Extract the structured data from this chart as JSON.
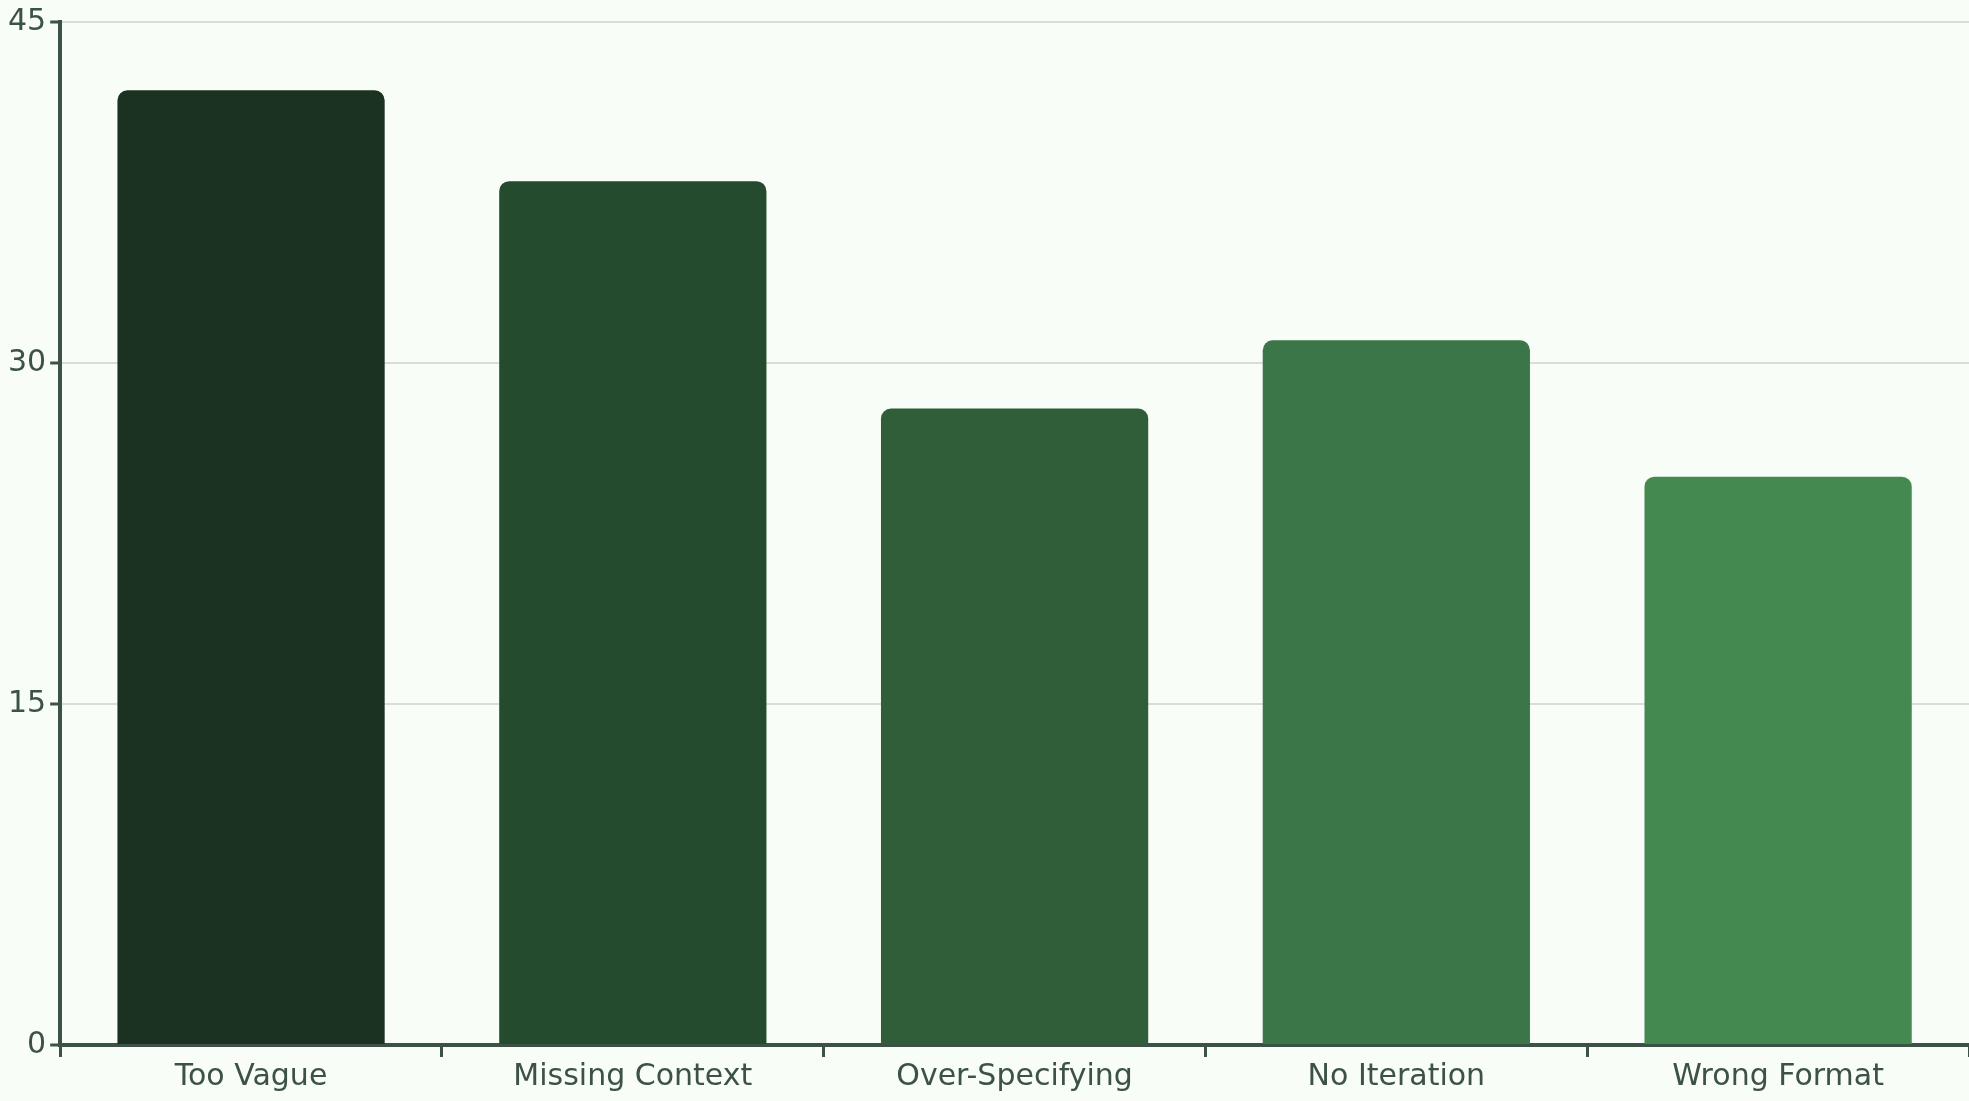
{
  "chart_data": {
    "type": "bar",
    "categories": [
      "Too Vague",
      "Missing Context",
      "Over-Specifying",
      "No Iteration",
      "Wrong Format"
    ],
    "values": [
      42,
      38,
      28,
      31,
      25
    ],
    "colors": [
      "#1b3220",
      "#254b2e",
      "#2f5e39",
      "#3b7648",
      "#448a50"
    ],
    "ylim": [
      0,
      45
    ],
    "yticks": [
      0,
      15,
      30,
      45
    ],
    "grid": "y",
    "legend": false
  }
}
